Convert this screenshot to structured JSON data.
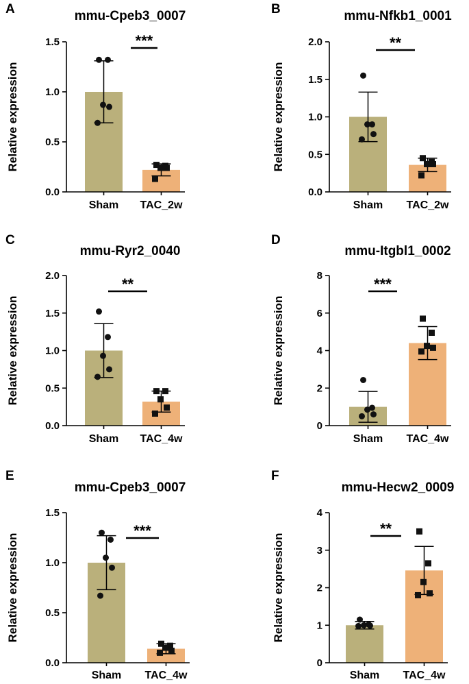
{
  "colors": {
    "sham_bar": "#bab07b",
    "tac_bar": "#eeb178",
    "axis": "#000000",
    "points": "#111111"
  },
  "chart_data": [
    {
      "panel_label": "A",
      "type": "bar",
      "title": "mmu-Cpeb3_0007",
      "ylabel": "Relative expression",
      "categories": [
        "Sham",
        "TAC_2w"
      ],
      "values": [
        1.0,
        0.22
      ],
      "errors": [
        0.31,
        0.06
      ],
      "points": [
        [
          1.32,
          1.32,
          0.87,
          0.85,
          0.69
        ],
        [
          0.27,
          0.26,
          0.24,
          0.24,
          0.13
        ]
      ],
      "ylim": [
        0,
        1.5
      ],
      "yticks": [
        0.0,
        0.5,
        1.0,
        1.5
      ],
      "tick_labels": [
        "0.0",
        "0.5",
        "1.0",
        "1.5"
      ],
      "significance": "***"
    },
    {
      "panel_label": "B",
      "type": "bar",
      "title": "mmu-Nfkb1_0001",
      "ylabel": "Relative expression",
      "categories": [
        "Sham",
        "TAC_2w"
      ],
      "values": [
        1.0,
        0.36
      ],
      "errors": [
        0.33,
        0.09
      ],
      "points": [
        [
          1.55,
          0.9,
          0.9,
          0.77,
          0.7
        ],
        [
          0.45,
          0.4,
          0.37,
          0.37,
          0.22
        ]
      ],
      "ylim": [
        0,
        2.0
      ],
      "yticks": [
        0.0,
        0.5,
        1.0,
        1.5,
        2.0
      ],
      "tick_labels": [
        "0.0",
        "0.5",
        "1.0",
        "1.5",
        "2.0"
      ],
      "significance": "**"
    },
    {
      "panel_label": "C",
      "type": "bar",
      "title": "mmu-Ryr2_0040",
      "ylabel": "Relative expression",
      "categories": [
        "Sham",
        "TAC_4w"
      ],
      "values": [
        1.0,
        0.32
      ],
      "errors": [
        0.36,
        0.14
      ],
      "points": [
        [
          1.52,
          1.18,
          0.93,
          0.75,
          0.65
        ],
        [
          0.46,
          0.46,
          0.35,
          0.24,
          0.16
        ]
      ],
      "ylim": [
        0,
        2.0
      ],
      "yticks": [
        0.0,
        0.5,
        1.0,
        1.5,
        2.0
      ],
      "tick_labels": [
        "0.0",
        "0.5",
        "1.0",
        "1.5",
        "2.0"
      ],
      "significance": "**"
    },
    {
      "panel_label": "D",
      "type": "bar",
      "title": "mmu-Itgbl1_0002",
      "ylabel": "Relative expression",
      "categories": [
        "Sham",
        "TAC_4w"
      ],
      "values": [
        1.0,
        4.4
      ],
      "errors": [
        0.82,
        0.88
      ],
      "points": [
        [
          2.43,
          0.95,
          0.85,
          0.6,
          0.5
        ],
        [
          5.7,
          4.95,
          4.25,
          4.15,
          3.95
        ]
      ],
      "ylim": [
        0,
        8
      ],
      "yticks": [
        0,
        2,
        4,
        6,
        8
      ],
      "tick_labels": [
        "0",
        "2",
        "4",
        "6",
        "8"
      ],
      "significance": "***"
    },
    {
      "panel_label": "E",
      "type": "bar",
      "title": "mmu-Cpeb3_0007",
      "ylabel": "Relative expression",
      "categories": [
        "Sham",
        "TAC_4w"
      ],
      "values": [
        1.0,
        0.14
      ],
      "errors": [
        0.27,
        0.05
      ],
      "points": [
        [
          1.3,
          1.23,
          1.05,
          0.95,
          0.67
        ],
        [
          0.19,
          0.17,
          0.15,
          0.12,
          0.1
        ]
      ],
      "ylim": [
        0,
        1.5
      ],
      "yticks": [
        0.0,
        0.5,
        1.0,
        1.5
      ],
      "tick_labels": [
        "0.0",
        "0.5",
        "1.0",
        "1.5"
      ],
      "significance": "***"
    },
    {
      "panel_label": "F",
      "type": "bar",
      "title": "mmu-Hecw2_0009",
      "ylabel": "Relative expression",
      "categories": [
        "Sham",
        "TAC_4w"
      ],
      "values": [
        1.0,
        2.46
      ],
      "errors": [
        0.1,
        0.64
      ],
      "points": [
        [
          1.15,
          1.02,
          1.0,
          0.99,
          0.98
        ],
        [
          3.5,
          2.65,
          2.15,
          1.85,
          1.8
        ]
      ],
      "ylim": [
        0,
        4
      ],
      "yticks": [
        0,
        1,
        2,
        3,
        4
      ],
      "tick_labels": [
        "0",
        "1",
        "2",
        "3",
        "4"
      ],
      "significance": "**"
    }
  ]
}
